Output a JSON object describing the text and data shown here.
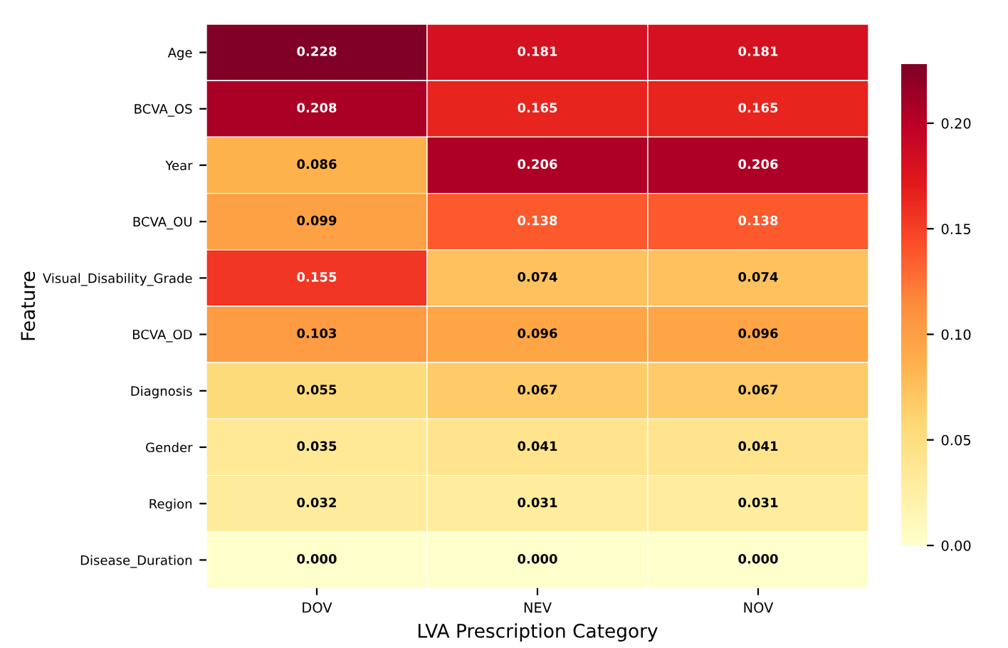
{
  "chart_data": {
    "type": "heatmap",
    "xlabel": "LVA Prescription Category",
    "ylabel": "Feature",
    "categories": [
      "DOV",
      "NEV",
      "NOV"
    ],
    "y_categories": [
      "Age",
      "BCVA_OS",
      "Year",
      "BCVA_OU",
      "Visual_Disability_Grade",
      "BCVA_OD",
      "Diagnosis",
      "Gender",
      "Region",
      "Disease_Duration"
    ],
    "cells": [
      [
        0.228,
        0.181,
        0.181
      ],
      [
        0.208,
        0.165,
        0.165
      ],
      [
        0.086,
        0.206,
        0.206
      ],
      [
        0.099,
        0.138,
        0.138
      ],
      [
        0.155,
        0.074,
        0.074
      ],
      [
        0.103,
        0.096,
        0.096
      ],
      [
        0.055,
        0.067,
        0.067
      ],
      [
        0.035,
        0.041,
        0.041
      ],
      [
        0.032,
        0.031,
        0.031
      ],
      [
        0.0,
        0.0,
        0.0
      ]
    ],
    "cell_labels": [
      [
        "0.228",
        "0.181",
        "0.181"
      ],
      [
        "0.208",
        "0.165",
        "0.165"
      ],
      [
        "0.086",
        "0.206",
        "0.206"
      ],
      [
        "0.099",
        "0.138",
        "0.138"
      ],
      [
        "0.155",
        "0.074",
        "0.074"
      ],
      [
        "0.103",
        "0.096",
        "0.096"
      ],
      [
        "0.055",
        "0.067",
        "0.067"
      ],
      [
        "0.035",
        "0.041",
        "0.041"
      ],
      [
        "0.032",
        "0.031",
        "0.031"
      ],
      [
        "0.000",
        "0.000",
        "0.000"
      ]
    ],
    "clim": [
      0,
      0.228
    ],
    "cticks": [
      {
        "value": 0,
        "label": "0.00"
      },
      {
        "value": 0.05,
        "label": "0.05"
      },
      {
        "value": 0.1,
        "label": "0.10"
      },
      {
        "value": 0.15,
        "label": "0.15"
      },
      {
        "value": 0.2,
        "label": "0.20"
      }
    ]
  }
}
